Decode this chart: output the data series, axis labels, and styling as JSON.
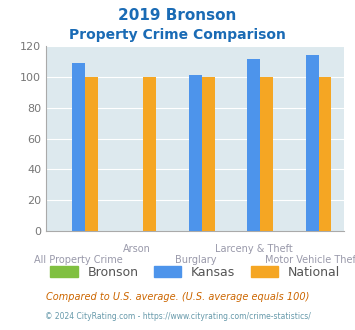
{
  "title_line1": "2019 Bronson",
  "title_line2": "Property Crime Comparison",
  "categories": [
    "All Property Crime",
    "Arson",
    "Burglary",
    "Larceny & Theft",
    "Motor Vehicle Theft"
  ],
  "bronson": [
    0,
    0,
    0,
    0,
    0
  ],
  "kansas": [
    109,
    0,
    101,
    112,
    114
  ],
  "national": [
    100,
    100,
    100,
    100,
    100
  ],
  "bronson_color": "#80c040",
  "kansas_color": "#4d94eb",
  "national_color": "#f5a623",
  "bg_color": "#dde9ee",
  "ylim": [
    0,
    120
  ],
  "yticks": [
    0,
    20,
    40,
    60,
    80,
    100,
    120
  ],
  "legend_labels": [
    "Bronson",
    "Kansas",
    "National"
  ],
  "footnote1": "Compared to U.S. average. (U.S. average equals 100)",
  "footnote2": "© 2024 CityRating.com - https://www.cityrating.com/crime-statistics/",
  "title_color": "#1a6bb5",
  "xlabel_top_color": "#9999aa",
  "xlabel_bot_color": "#9999aa",
  "ylabel_color": "#777777",
  "footnote1_color": "#cc6600",
  "footnote2_color": "#6699aa",
  "x_labels_top": [
    "",
    "Arson",
    "",
    "Larceny & Theft",
    ""
  ],
  "x_labels_bot": [
    "All Property Crime",
    "",
    "Burglary",
    "",
    "Motor Vehicle Theft"
  ]
}
